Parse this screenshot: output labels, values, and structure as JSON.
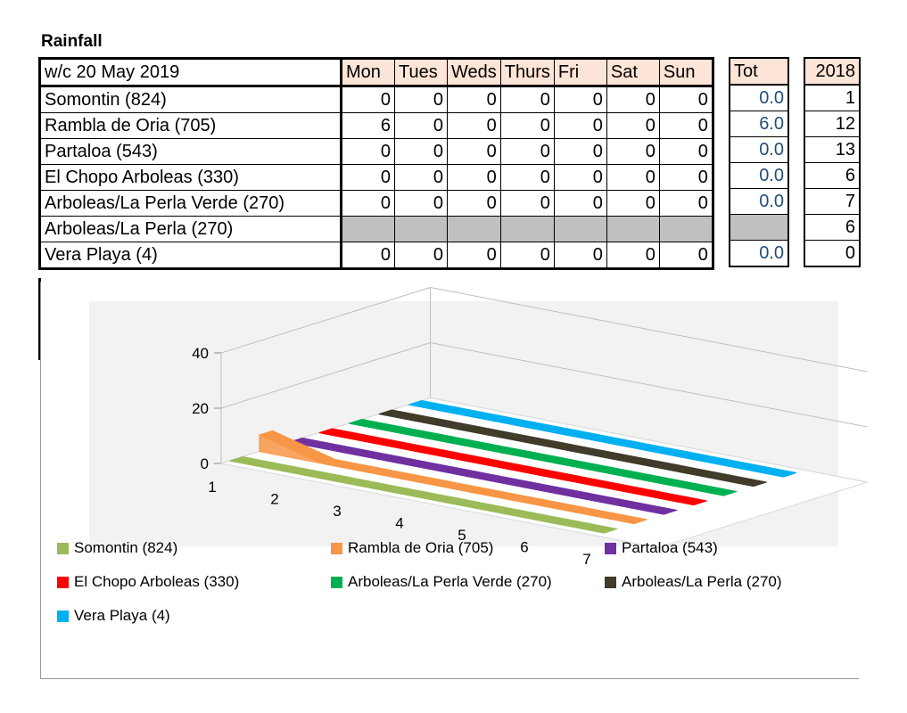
{
  "title": "Rainfall",
  "table": {
    "week_label": "w/c 20 May 2019",
    "days": [
      "Mon",
      "Tues",
      "Weds",
      "Thurs",
      "Fri",
      "Sat",
      "Sun"
    ],
    "tot_label": "Tot",
    "year_label": "2018",
    "rows": [
      {
        "name": "Somontin (824)",
        "values": [
          "0",
          "0",
          "0",
          "0",
          "0",
          "0",
          "0"
        ],
        "tot": "0.0",
        "y2018": "1"
      },
      {
        "name": "Rambla de Oria (705)",
        "values": [
          "6",
          "0",
          "0",
          "0",
          "0",
          "0",
          "0"
        ],
        "tot": "6.0",
        "y2018": "12"
      },
      {
        "name": "Partaloa (543)",
        "values": [
          "0",
          "0",
          "0",
          "0",
          "0",
          "0",
          "0"
        ],
        "tot": "0.0",
        "y2018": "13"
      },
      {
        "name": "El Chopo Arboleas (330)",
        "values": [
          "0",
          "0",
          "0",
          "0",
          "0",
          "0",
          "0"
        ],
        "tot": "0.0",
        "y2018": "6"
      },
      {
        "name": "Arboleas/La Perla Verde (270)",
        "values": [
          "0",
          "0",
          "0",
          "0",
          "0",
          "0",
          "0"
        ],
        "tot": "0.0",
        "y2018": "7"
      },
      {
        "name": "Arboleas/La Perla (270)",
        "values": null,
        "tot": null,
        "y2018": "6"
      },
      {
        "name": "Vera Playa (4)",
        "values": [
          "0",
          "0",
          "0",
          "0",
          "0",
          "0",
          "0"
        ],
        "tot": "0.0",
        "y2018": "0"
      }
    ]
  },
  "chart_data": {
    "type": "area",
    "subtype": "3d-area",
    "categories": [
      "1",
      "2",
      "3",
      "4",
      "5",
      "6",
      "7"
    ],
    "y_ticks": [
      "0",
      "20",
      "40"
    ],
    "ylim": [
      0,
      40
    ],
    "grid": true,
    "legend_position": "bottom",
    "series": [
      {
        "name": "Somontin (824)",
        "color": "#9bbb59",
        "values": [
          0,
          0,
          0,
          0,
          0,
          0,
          0
        ]
      },
      {
        "name": "Rambla de Oria (705)",
        "color": "#f79646",
        "values": [
          6,
          0,
          0,
          0,
          0,
          0,
          0
        ]
      },
      {
        "name": "Partaloa (543)",
        "color": "#7030a0",
        "values": [
          0,
          0,
          0,
          0,
          0,
          0,
          0
        ]
      },
      {
        "name": "El Chopo Arboleas (330)",
        "color": "#ff0000",
        "values": [
          0,
          0,
          0,
          0,
          0,
          0,
          0
        ]
      },
      {
        "name": "Arboleas/La Perla Verde (270)",
        "color": "#00b050",
        "values": [
          0,
          0,
          0,
          0,
          0,
          0,
          0
        ]
      },
      {
        "name": "Arboleas/La Perla (270)",
        "color": "#403b2a",
        "values": [
          0,
          0,
          0,
          0,
          0,
          0,
          0
        ]
      },
      {
        "name": "Vera Playa (4)",
        "color": "#00b0f0",
        "values": [
          0,
          0,
          0,
          0,
          0,
          0,
          0
        ]
      }
    ]
  }
}
